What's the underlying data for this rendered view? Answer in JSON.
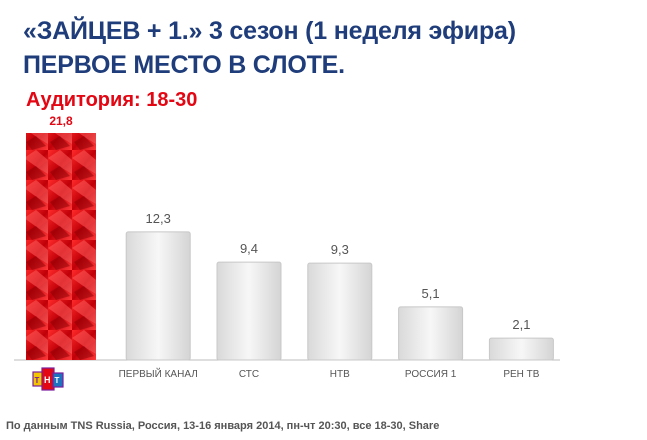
{
  "header": {
    "title_line1": "«ЗАЙЦЕВ + 1.» 3 сезон (1 неделя эфира)",
    "title_line2": "ПЕРВОЕ МЕСТО В СЛОТЕ.",
    "audience": "Аудитория: 18-30"
  },
  "footnote": "По данным TNS Russia, Россия, 13-16 января 2014, пн-чт 20:30, все 18-30, Share",
  "logo": {
    "icon": "tnt-logo-icon"
  },
  "colors": {
    "title": "#1f3d7a",
    "accent": "#e30613",
    "bar": "#ececec",
    "bar_highlight": "#e30613"
  },
  "chart_data": {
    "type": "bar",
    "categories": [
      "ТНТ",
      "ПЕРВЫЙ КАНАЛ",
      "СТС",
      "НТВ",
      "РОССИЯ 1",
      "РЕН ТВ"
    ],
    "values": [
      21.8,
      12.3,
      9.4,
      9.3,
      5.1,
      2.1
    ],
    "value_labels": [
      "21,8",
      "12,3",
      "9,4",
      "9,3",
      "5,1",
      "2,1"
    ],
    "highlight_index": 0,
    "ylim": [
      0,
      21.8
    ],
    "grid": false,
    "legend": "none"
  }
}
